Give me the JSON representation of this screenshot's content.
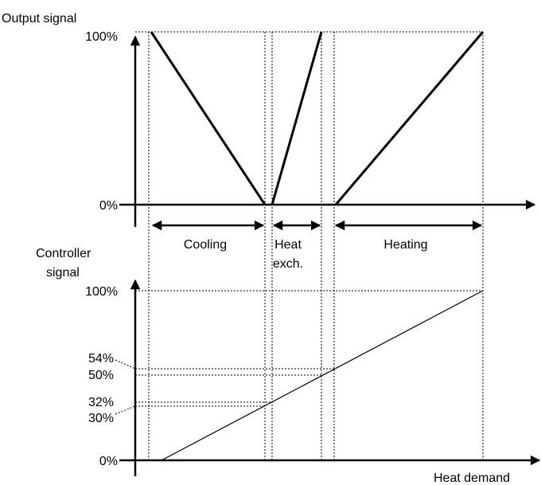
{
  "top_chart": {
    "y_axis_label": "Output signal",
    "y_labels": [
      "100%",
      "0%"
    ],
    "zones": [
      "Cooling",
      "Heat",
      "exch.",
      "Heating"
    ]
  },
  "bottom_chart": {
    "y_axis_label": [
      "Controller",
      "signal"
    ],
    "y_labels": [
      "100%",
      "54%",
      "50%",
      "32%",
      "30%",
      "0%"
    ],
    "x_axis_label": "Heat demand"
  }
}
